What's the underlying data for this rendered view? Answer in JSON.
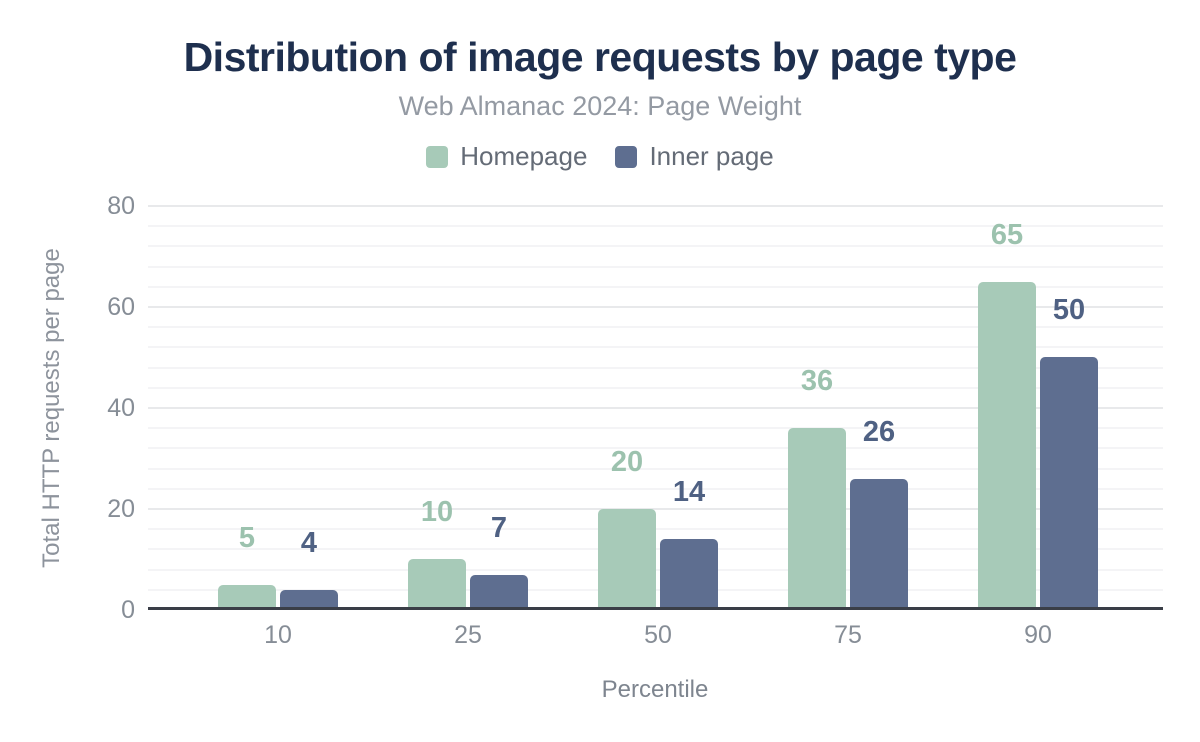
{
  "header": {
    "title": "Distribution of image requests by page type",
    "subtitle": "Web Almanac 2024: Page Weight"
  },
  "legend": {
    "items": [
      {
        "label": "Homepage",
        "color": "#a7cab8"
      },
      {
        "label": "Inner page",
        "color": "#5e6e90"
      }
    ]
  },
  "chart_data": {
    "type": "bar",
    "categories": [
      "10",
      "25",
      "50",
      "75",
      "90"
    ],
    "series": [
      {
        "name": "Homepage",
        "values": [
          5,
          10,
          20,
          36,
          65
        ],
        "color": "#a7cab8",
        "label_color": "#9cc2ae"
      },
      {
        "name": "Inner page",
        "values": [
          4,
          7,
          14,
          26,
          50
        ],
        "color": "#5e6e90",
        "label_color": "#4f6183"
      }
    ],
    "title": "Distribution of image requests by page type",
    "subtitle": "Web Almanac 2024: Page Weight",
    "xlabel": "Percentile",
    "ylabel": "Total HTTP requests per page",
    "ylim": [
      0,
      80
    ],
    "yticks": [
      0,
      20,
      40,
      60,
      80
    ],
    "minor_grid_step": 4,
    "grid": "on",
    "legend_position": "top",
    "data_labels": "on"
  },
  "colors": {
    "title": "#1e2f4e",
    "subtitle": "#949aa3",
    "legend_text": "#646b76",
    "tick_label": "#868d96",
    "axis_title": "#8d939c",
    "axis_line": "#3a3e47",
    "grid_major": "#e8e9eb",
    "grid_minor": "#f4f4f6",
    "background": "#ffffff"
  }
}
